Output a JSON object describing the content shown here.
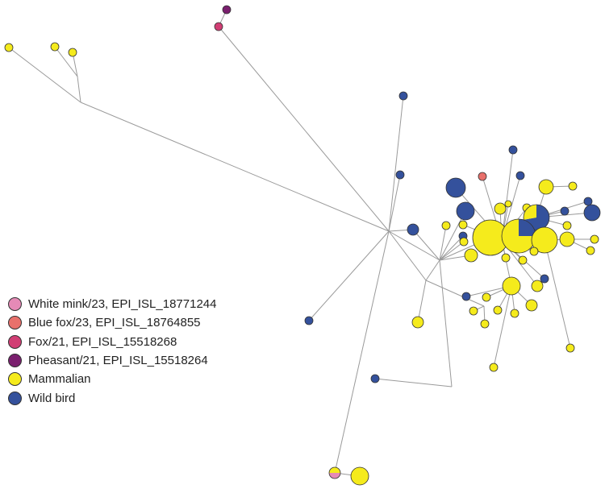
{
  "colors": {
    "white_mink": "#E58AB6",
    "blue_fox": "#E8706B",
    "fox": "#D13E74",
    "pheasant": "#7A1F6E",
    "mammalian": "#F5EB1C",
    "wild_bird": "#34519C",
    "edge": "#9a9a9a",
    "node_border": "#333333"
  },
  "legend": {
    "items": [
      {
        "label": "White mink/23, EPI_ISL_18771244",
        "color_key": "white_mink"
      },
      {
        "label": "Blue fox/23, EPI_ISL_18764855",
        "color_key": "blue_fox"
      },
      {
        "label": "Fox/21, EPI_ISL_15518268",
        "color_key": "fox"
      },
      {
        "label": "Pheasant/21, EPI_ISL_15518264",
        "color_key": "pheasant"
      },
      {
        "label": "Mammalian",
        "color_key": "mammalian"
      },
      {
        "label": "Wild bird",
        "color_key": "wild_bird"
      }
    ]
  }
}
